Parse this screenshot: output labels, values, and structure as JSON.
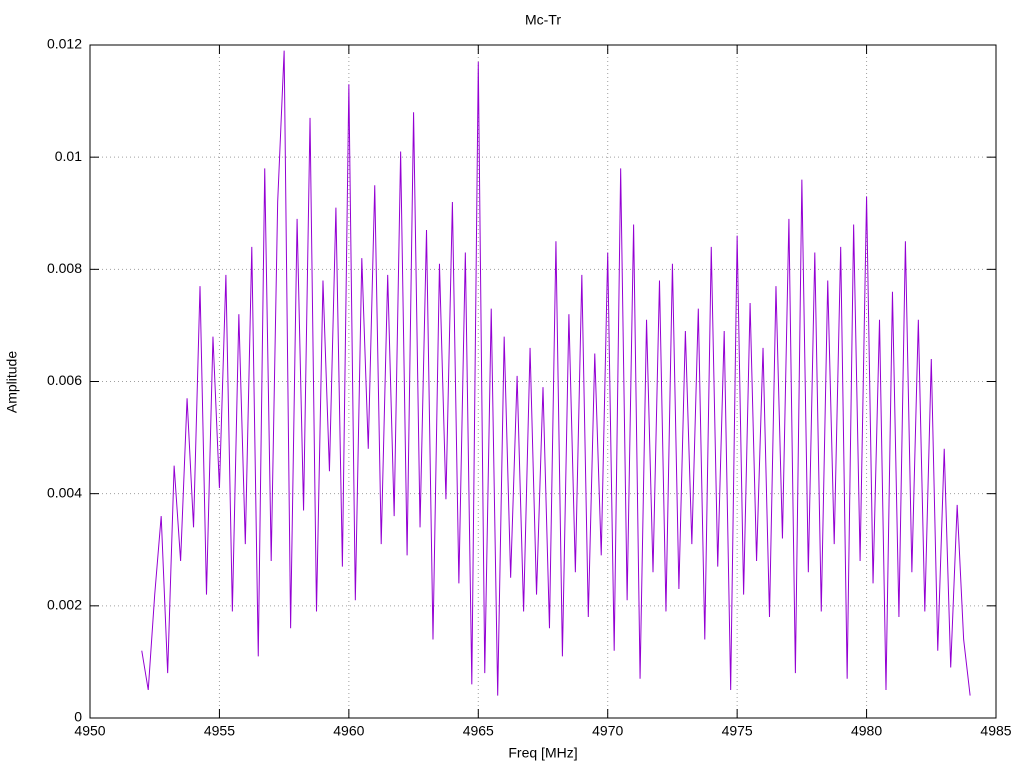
{
  "chart_data": {
    "type": "line",
    "title": "Mc-Tr",
    "x_label": "Freq [MHz]",
    "y_label": "Amplitude",
    "xlim": [
      4950,
      4985
    ],
    "xticks": [
      4950,
      4955,
      4960,
      4965,
      4970,
      4975,
      4980,
      4985
    ],
    "ylim": [
      0,
      0.012
    ],
    "yticks": [
      0,
      0.002,
      0.004,
      0.006,
      0.008,
      0.01,
      0.012
    ],
    "grid": true,
    "x": [
      4952,
      4952.25,
      4952.5,
      4952.75,
      4953,
      4953.25,
      4953.5,
      4953.75,
      4954,
      4954.25,
      4954.5,
      4954.75,
      4955,
      4955.25,
      4955.5,
      4955.75,
      4956,
      4956.25,
      4956.5,
      4956.75,
      4957,
      4957.25,
      4957.5,
      4957.75,
      4958,
      4958.25,
      4958.5,
      4958.75,
      4959,
      4959.25,
      4959.5,
      4959.75,
      4960,
      4960.25,
      4960.5,
      4960.75,
      4961,
      4961.25,
      4961.5,
      4961.75,
      4962,
      4962.25,
      4962.5,
      4962.75,
      4963,
      4963.25,
      4963.5,
      4963.75,
      4964,
      4964.25,
      4964.5,
      4964.75,
      4965,
      4965.25,
      4965.5,
      4965.75,
      4966,
      4966.25,
      4966.5,
      4966.75,
      4967,
      4967.25,
      4967.5,
      4967.75,
      4968,
      4968.25,
      4968.5,
      4968.75,
      4969,
      4969.25,
      4969.5,
      4969.75,
      4970,
      4970.25,
      4970.5,
      4970.75,
      4971,
      4971.25,
      4971.5,
      4971.75,
      4972,
      4972.25,
      4972.5,
      4972.75,
      4973,
      4973.25,
      4973.5,
      4973.75,
      4974,
      4974.25,
      4974.5,
      4974.75,
      4975,
      4975.25,
      4975.5,
      4975.75,
      4976,
      4976.25,
      4976.5,
      4976.75,
      4977,
      4977.25,
      4977.5,
      4977.75,
      4978,
      4978.25,
      4978.5,
      4978.75,
      4979,
      4979.25,
      4979.5,
      4979.75,
      4980,
      4980.25,
      4980.5,
      4980.75,
      4981,
      4981.25,
      4981.5,
      4981.75,
      4982,
      4982.25,
      4982.5,
      4982.75,
      4983,
      4983.25,
      4983.5,
      4983.75,
      4984
    ],
    "series": [
      {
        "name": "Mc-Tr",
        "color": "#9400d3",
        "values": [
          0.0012,
          0.0005,
          0.0022,
          0.0036,
          0.0008,
          0.0045,
          0.0028,
          0.0057,
          0.0034,
          0.0077,
          0.0022,
          0.0068,
          0.0041,
          0.0079,
          0.0019,
          0.0072,
          0.0031,
          0.0084,
          0.0011,
          0.0098,
          0.0028,
          0.0092,
          0.0119,
          0.0016,
          0.0089,
          0.0037,
          0.0107,
          0.0019,
          0.0078,
          0.0044,
          0.0091,
          0.0027,
          0.0113,
          0.0021,
          0.0082,
          0.0048,
          0.0095,
          0.0031,
          0.0079,
          0.0036,
          0.0101,
          0.0029,
          0.0108,
          0.0034,
          0.0087,
          0.0014,
          0.0081,
          0.0039,
          0.0092,
          0.0024,
          0.0083,
          0.0006,
          0.0117,
          0.0008,
          0.0073,
          0.0004,
          0.0068,
          0.0025,
          0.0061,
          0.0019,
          0.0066,
          0.0022,
          0.0059,
          0.0016,
          0.0085,
          0.0011,
          0.0072,
          0.0026,
          0.0079,
          0.0018,
          0.0065,
          0.0029,
          0.0083,
          0.0012,
          0.0098,
          0.0021,
          0.0088,
          0.0007,
          0.0071,
          0.0026,
          0.0078,
          0.0019,
          0.0081,
          0.0023,
          0.0069,
          0.0031,
          0.0073,
          0.0014,
          0.0084,
          0.0027,
          0.0069,
          0.0005,
          0.0086,
          0.0022,
          0.0074,
          0.0028,
          0.0066,
          0.0018,
          0.0077,
          0.0032,
          0.0089,
          0.0008,
          0.0096,
          0.0026,
          0.0083,
          0.0019,
          0.0078,
          0.0031,
          0.0084,
          0.0007,
          0.0088,
          0.0028,
          0.0093,
          0.0024,
          0.0071,
          0.0005,
          0.0076,
          0.0018,
          0.0085,
          0.0026,
          0.0071,
          0.0019,
          0.0064,
          0.0012,
          0.0048,
          0.0009,
          0.0038,
          0.0014,
          0.0004
        ]
      }
    ]
  }
}
